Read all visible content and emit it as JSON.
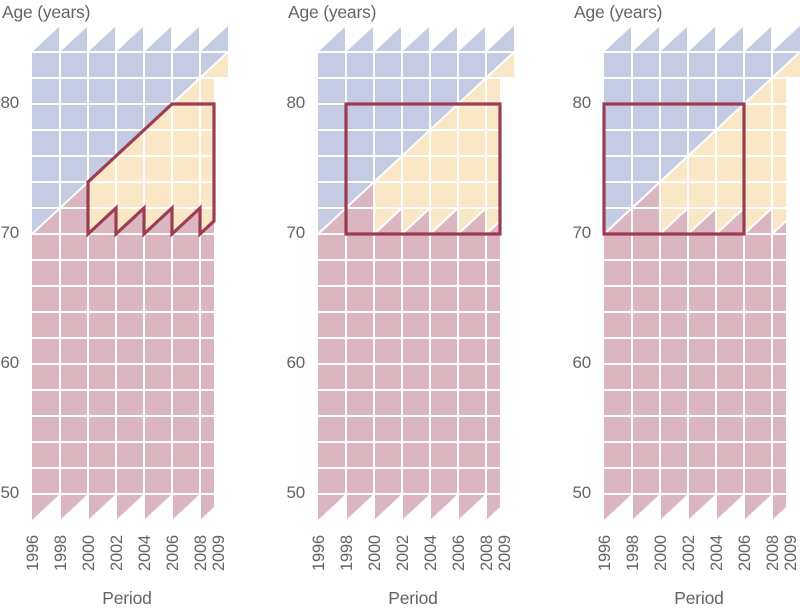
{
  "figure": {
    "type": "lexis-diagram-triptych",
    "description": "Three Lexis diagrams (age by calendar period, 2-year cells) with shaded cohort regions and dark-red selection outlines for ages 70-80",
    "y_axis_title": "Age (years)",
    "x_axis_title": "Period",
    "y_ticks": [
      {
        "label": "80",
        "age": 80
      },
      {
        "label": "70",
        "age": 70
      },
      {
        "label": "60",
        "age": 60
      },
      {
        "label": "50",
        "age": 50
      }
    ],
    "x_ticks": [
      {
        "label": "1996",
        "year": 1996
      },
      {
        "label": "1998",
        "year": 1998
      },
      {
        "label": "2000",
        "year": 2000
      },
      {
        "label": "2002",
        "year": 2002
      },
      {
        "label": "2004",
        "year": 2004
      },
      {
        "label": "2006",
        "year": 2006
      },
      {
        "label": "2008",
        "year": 2008
      },
      {
        "label": "2009",
        "year": 2009
      }
    ],
    "colors": {
      "blue_region": "#c4cbe3",
      "cream_region": "#f9e7c6",
      "pink_region": "#dbb5c0",
      "selection_outline": "#9c3c53",
      "gridline": "#ffffff",
      "text": "#646467"
    },
    "axes_ranges": {
      "age_min": 48,
      "age_max": 86,
      "period_min": 1996,
      "period_max": 2010
    },
    "lexis_surface": {
      "blue_polygon": [
        [
          1996,
          70
        ],
        [
          1996,
          84
        ],
        [
          2010,
          84
        ]
      ],
      "cream_polygon": [
        [
          2000,
          74
        ],
        [
          2010,
          84
        ],
        [
          2010,
          82
        ],
        [
          2009,
          82
        ],
        [
          2009,
          71
        ],
        [
          2008,
          70
        ],
        [
          2008,
          72
        ],
        [
          2006,
          70
        ],
        [
          2006,
          72
        ],
        [
          2004,
          70
        ],
        [
          2004,
          72
        ],
        [
          2002,
          70
        ],
        [
          2002,
          72
        ],
        [
          2000,
          70
        ]
      ],
      "pink_polygon": [
        [
          1996,
          70
        ],
        [
          2000,
          74
        ],
        [
          2000,
          70
        ],
        [
          2002,
          72
        ],
        [
          2002,
          70
        ],
        [
          2004,
          72
        ],
        [
          2004,
          70
        ],
        [
          2006,
          72
        ],
        [
          2006,
          70
        ],
        [
          2008,
          72
        ],
        [
          2008,
          70
        ],
        [
          2009,
          71
        ],
        [
          2009,
          49
        ],
        [
          2008,
          48
        ],
        [
          2008,
          50
        ],
        [
          2006,
          48
        ],
        [
          2006,
          50
        ],
        [
          2004,
          48
        ],
        [
          2004,
          50
        ],
        [
          2002,
          48
        ],
        [
          2002,
          50
        ],
        [
          2000,
          48
        ],
        [
          2000,
          50
        ],
        [
          1998,
          48
        ],
        [
          1998,
          50
        ],
        [
          1996,
          48
        ]
      ],
      "top_sawtooth_years": [
        1996,
        1998,
        2000,
        2002,
        2004,
        2006,
        2008
      ],
      "top_sawtooth_ages": [
        84,
        86
      ],
      "cohort_separator_lines": [
        [
          [
            1996,
            70
          ],
          [
            2010,
            84
          ]
        ],
        [
          [
            2000,
            70
          ],
          [
            2002,
            72
          ]
        ],
        [
          [
            2002,
            70
          ],
          [
            2004,
            72
          ]
        ],
        [
          [
            2004,
            70
          ],
          [
            2006,
            72
          ]
        ],
        [
          [
            2006,
            70
          ],
          [
            2008,
            72
          ]
        ],
        [
          [
            2008,
            70
          ],
          [
            2009,
            71
          ]
        ]
      ],
      "grid_vertical_years": [
        1998,
        2000,
        2002,
        2004,
        2006,
        2008
      ],
      "grid_horizontal_ages": [
        50,
        52,
        54,
        56,
        58,
        60,
        62,
        64,
        66,
        68,
        70,
        72,
        74,
        76,
        78,
        80,
        82,
        84
      ]
    },
    "panels": [
      {
        "name": "panel-1",
        "selection": "cohort-following zigzag selection, ages 70-80, periods 2000-2009",
        "outline": [
          [
            2000,
            74
          ],
          [
            2006,
            80
          ],
          [
            2009,
            80
          ],
          [
            2009,
            71
          ],
          [
            2008,
            70
          ],
          [
            2008,
            72
          ],
          [
            2006,
            70
          ],
          [
            2006,
            72
          ],
          [
            2004,
            70
          ],
          [
            2004,
            72
          ],
          [
            2002,
            70
          ],
          [
            2002,
            72
          ],
          [
            2000,
            70
          ]
        ]
      },
      {
        "name": "panel-2",
        "selection": "rectangular selection, ages 70-80, periods 1998-2009",
        "outline": [
          [
            1998,
            80
          ],
          [
            2009,
            80
          ],
          [
            2009,
            70
          ],
          [
            1998,
            70
          ]
        ]
      },
      {
        "name": "panel-3",
        "selection": "rectangular selection, ages 70-80, periods 1996-2006",
        "outline": [
          [
            1996,
            80
          ],
          [
            2006,
            80
          ],
          [
            2006,
            70
          ],
          [
            1996,
            70
          ]
        ]
      }
    ]
  }
}
